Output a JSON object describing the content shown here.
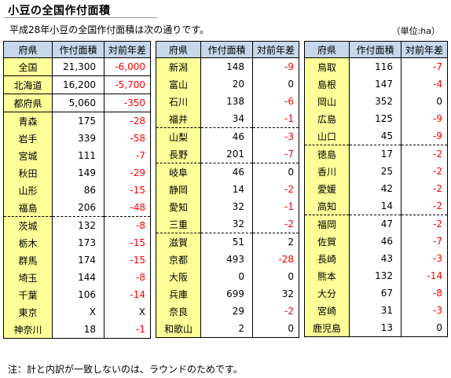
{
  "title": "小豆の全国作付面積",
  "intro": "平成28年小豆の全国作付面積は次の通りです。",
  "unit": "（単位:ha）",
  "footnote": "注：計と内訳が一致しないのは、ラウンドのためです。",
  "headers": {
    "pref": "府県",
    "area": "作付面積",
    "diff": "対前年差"
  },
  "panels": [
    {
      "rows": [
        {
          "pref": "全国",
          "area": "21,300",
          "diff": "-6,000",
          "neg": true,
          "sep": "solid"
        },
        {
          "pref": "北海道",
          "area": "16,200",
          "diff": "-5,700",
          "neg": true,
          "sep": "solid"
        },
        {
          "pref": "都府県",
          "area": "5,060",
          "diff": "-350",
          "neg": true,
          "sep": "solid"
        },
        {
          "pref": "青森",
          "area": "175",
          "diff": "-28",
          "neg": true,
          "sep": "solid"
        },
        {
          "pref": "岩手",
          "area": "339",
          "diff": "-58",
          "neg": true,
          "sep": "none"
        },
        {
          "pref": "宮城",
          "area": "111",
          "diff": "-7",
          "neg": true,
          "sep": "none"
        },
        {
          "pref": "秋田",
          "area": "149",
          "diff": "-29",
          "neg": true,
          "sep": "none"
        },
        {
          "pref": "山形",
          "area": "86",
          "diff": "-15",
          "neg": true,
          "sep": "none"
        },
        {
          "pref": "福島",
          "area": "206",
          "diff": "-48",
          "neg": true,
          "sep": "none"
        },
        {
          "pref": "茨城",
          "area": "132",
          "diff": "-8",
          "neg": true,
          "sep": "dash"
        },
        {
          "pref": "栃木",
          "area": "173",
          "diff": "-15",
          "neg": true,
          "sep": "none"
        },
        {
          "pref": "群馬",
          "area": "174",
          "diff": "-15",
          "neg": true,
          "sep": "none"
        },
        {
          "pref": "埼玉",
          "area": "144",
          "diff": "-8",
          "neg": true,
          "sep": "none"
        },
        {
          "pref": "千葉",
          "area": "106",
          "diff": "-14",
          "neg": true,
          "sep": "none"
        },
        {
          "pref": "東京",
          "area": "X",
          "diff": "X",
          "neg": false,
          "sep": "none"
        },
        {
          "pref": "神奈川",
          "area": "18",
          "diff": "-1",
          "neg": true,
          "sep": "none"
        }
      ]
    },
    {
      "rows": [
        {
          "pref": "新潟",
          "area": "148",
          "diff": "-9",
          "neg": true,
          "sep": "solid"
        },
        {
          "pref": "富山",
          "area": "20",
          "diff": "0",
          "neg": false,
          "sep": "none"
        },
        {
          "pref": "石川",
          "area": "138",
          "diff": "-6",
          "neg": true,
          "sep": "none"
        },
        {
          "pref": "福井",
          "area": "34",
          "diff": "-1",
          "neg": true,
          "sep": "none"
        },
        {
          "pref": "山梨",
          "area": "46",
          "diff": "-3",
          "neg": true,
          "sep": "dash"
        },
        {
          "pref": "長野",
          "area": "201",
          "diff": "-7",
          "neg": true,
          "sep": "none"
        },
        {
          "pref": "岐阜",
          "area": "46",
          "diff": "0",
          "neg": false,
          "sep": "dash"
        },
        {
          "pref": "静岡",
          "area": "14",
          "diff": "-2",
          "neg": true,
          "sep": "none"
        },
        {
          "pref": "愛知",
          "area": "32",
          "diff": "-1",
          "neg": true,
          "sep": "none"
        },
        {
          "pref": "三重",
          "area": "32",
          "diff": "-2",
          "neg": true,
          "sep": "none"
        },
        {
          "pref": "滋賀",
          "area": "51",
          "diff": "2",
          "neg": false,
          "sep": "dash"
        },
        {
          "pref": "京都",
          "area": "493",
          "diff": "-28",
          "neg": true,
          "sep": "none"
        },
        {
          "pref": "大阪",
          "area": "0",
          "diff": "0",
          "neg": false,
          "sep": "none"
        },
        {
          "pref": "兵庫",
          "area": "699",
          "diff": "32",
          "neg": false,
          "sep": "none"
        },
        {
          "pref": "奈良",
          "area": "29",
          "diff": "-2",
          "neg": true,
          "sep": "none"
        },
        {
          "pref": "和歌山",
          "area": "2",
          "diff": "0",
          "neg": false,
          "sep": "none"
        }
      ]
    },
    {
      "rows": [
        {
          "pref": "鳥取",
          "area": "116",
          "diff": "-7",
          "neg": true,
          "sep": "solid"
        },
        {
          "pref": "島根",
          "area": "147",
          "diff": "-4",
          "neg": true,
          "sep": "none"
        },
        {
          "pref": "岡山",
          "area": "352",
          "diff": "0",
          "neg": false,
          "sep": "none"
        },
        {
          "pref": "広島",
          "area": "125",
          "diff": "-9",
          "neg": true,
          "sep": "none"
        },
        {
          "pref": "山口",
          "area": "45",
          "diff": "-9",
          "neg": true,
          "sep": "none"
        },
        {
          "pref": "徳島",
          "area": "17",
          "diff": "-2",
          "neg": true,
          "sep": "dash"
        },
        {
          "pref": "香川",
          "area": "25",
          "diff": "-2",
          "neg": true,
          "sep": "none"
        },
        {
          "pref": "愛媛",
          "area": "42",
          "diff": "-2",
          "neg": true,
          "sep": "none"
        },
        {
          "pref": "高知",
          "area": "14",
          "diff": "-2",
          "neg": true,
          "sep": "none"
        },
        {
          "pref": "福岡",
          "area": "47",
          "diff": "-2",
          "neg": true,
          "sep": "dash"
        },
        {
          "pref": "佐賀",
          "area": "46",
          "diff": "-7",
          "neg": true,
          "sep": "none"
        },
        {
          "pref": "長崎",
          "area": "43",
          "diff": "-3",
          "neg": true,
          "sep": "none"
        },
        {
          "pref": "熊本",
          "area": "132",
          "diff": "-14",
          "neg": true,
          "sep": "none"
        },
        {
          "pref": "大分",
          "area": "67",
          "diff": "-8",
          "neg": true,
          "sep": "none"
        },
        {
          "pref": "宮崎",
          "area": "31",
          "diff": "-3",
          "neg": true,
          "sep": "none"
        },
        {
          "pref": "鹿児島",
          "area": "13",
          "diff": "0",
          "neg": false,
          "sep": "none"
        }
      ]
    }
  ]
}
